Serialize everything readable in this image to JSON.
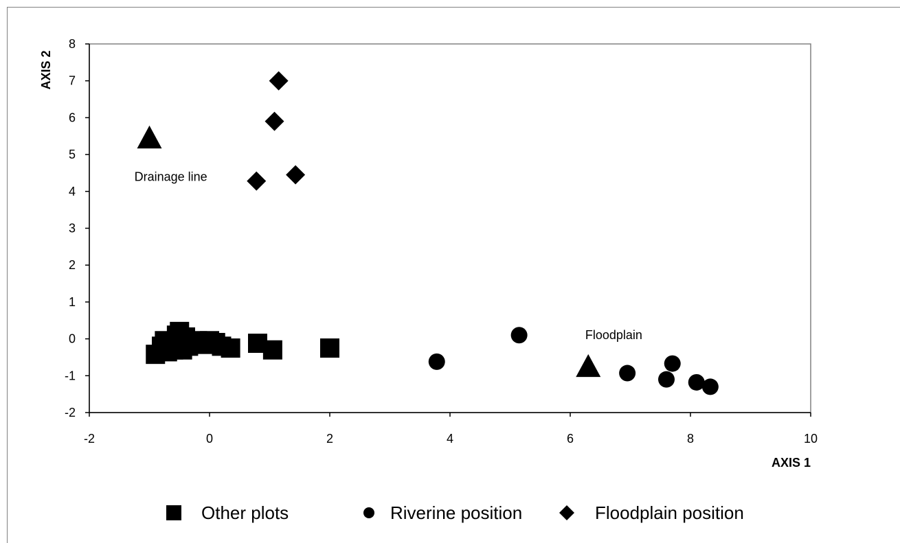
{
  "chart_data": {
    "type": "scatter",
    "xlabel": "AXIS 1",
    "ylabel": "AXIS 2",
    "xlim": [
      -2,
      10
    ],
    "ylim": [
      -2,
      8
    ],
    "x_ticks": [
      -2,
      0,
      2,
      4,
      6,
      8,
      10
    ],
    "y_ticks": [
      -2,
      -1,
      0,
      1,
      2,
      3,
      4,
      5,
      6,
      7,
      8
    ],
    "grid": false,
    "legend_position": "bottom",
    "series": [
      {
        "name": "Other plots",
        "marker": "square",
        "points": [
          [
            -0.9,
            -0.42
          ],
          [
            -0.8,
            -0.2
          ],
          [
            -0.75,
            -0.05
          ],
          [
            -0.7,
            -0.35
          ],
          [
            -0.65,
            -0.15
          ],
          [
            -0.6,
            -0.3
          ],
          [
            -0.55,
            0.1
          ],
          [
            -0.5,
            -0.1
          ],
          [
            -0.5,
            0.2
          ],
          [
            -0.45,
            -0.3
          ],
          [
            -0.4,
            0.05
          ],
          [
            -0.35,
            -0.2
          ],
          [
            -0.3,
            -0.1
          ],
          [
            -0.2,
            -0.05
          ],
          [
            -0.1,
            -0.15
          ],
          [
            0.0,
            -0.05
          ],
          [
            0.1,
            -0.1
          ],
          [
            0.2,
            -0.2
          ],
          [
            0.35,
            -0.25
          ],
          [
            0.8,
            -0.12
          ],
          [
            1.05,
            -0.3
          ],
          [
            2.0,
            -0.25
          ]
        ]
      },
      {
        "name": "Riverine position",
        "marker": "circle",
        "points": [
          [
            3.78,
            -0.62
          ],
          [
            5.15,
            0.1
          ],
          [
            6.95,
            -0.93
          ],
          [
            7.6,
            -1.1
          ],
          [
            7.7,
            -0.67
          ],
          [
            8.1,
            -1.18
          ],
          [
            8.33,
            -1.3
          ]
        ]
      },
      {
        "name": "Floodplain position",
        "marker": "diamond",
        "points": [
          [
            1.15,
            7.0
          ],
          [
            1.08,
            5.9
          ],
          [
            0.78,
            4.28
          ],
          [
            1.43,
            4.45
          ]
        ]
      },
      {
        "name": "",
        "marker": "triangle",
        "points": [
          [
            -1.0,
            5.45
          ],
          [
            6.3,
            -0.75
          ]
        ]
      }
    ],
    "annotations": [
      {
        "text": "Drainage line",
        "x": -1.25,
        "y": 4.4
      },
      {
        "text": "Floodplain",
        "x": 6.25,
        "y": 0.1
      }
    ]
  }
}
